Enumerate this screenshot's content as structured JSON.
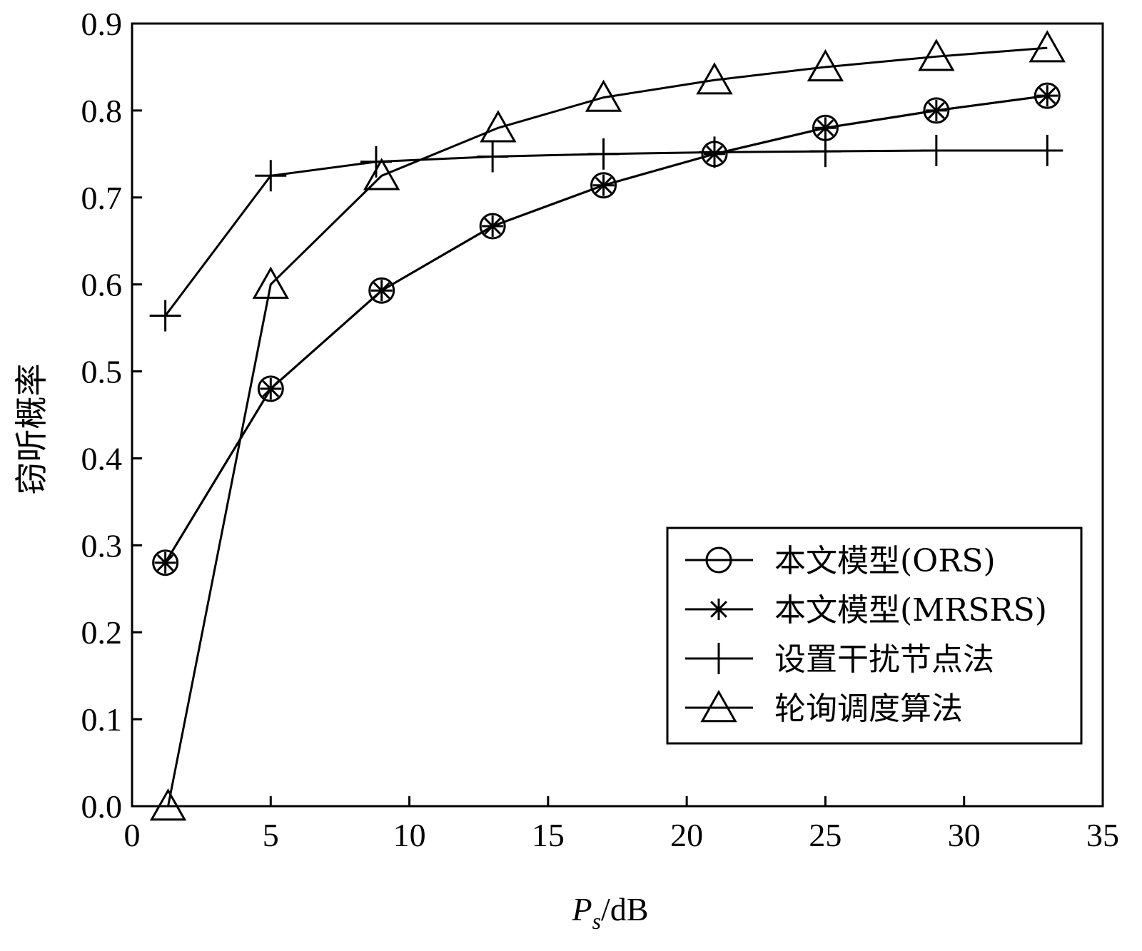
{
  "chart_data": {
    "type": "line",
    "title": "",
    "xlabel": "P_s/dB",
    "xlabel_parts": {
      "symbol": "P",
      "subscript": "s",
      "unit": "/dB"
    },
    "ylabel": "窃听概率",
    "xlim": [
      0,
      35
    ],
    "ylim": [
      0,
      0.9
    ],
    "x_ticks": [
      "0",
      "5",
      "10",
      "15",
      "20",
      "25",
      "30",
      "35"
    ],
    "y_ticks": [
      "0.0",
      "0.1",
      "0.2",
      "0.3",
      "0.4",
      "0.5",
      "0.6",
      "0.7",
      "0.8",
      "0.9"
    ],
    "grid": false,
    "legend_position": "lower-right",
    "series": [
      {
        "name": "本文模型(ORS)",
        "marker": "circle",
        "x": [
          1.2,
          5,
          9,
          13,
          17,
          21,
          25,
          29,
          33
        ],
        "y": [
          0.28,
          0.48,
          0.593,
          0.667,
          0.714,
          0.75,
          0.78,
          0.8,
          0.817
        ]
      },
      {
        "name": "本文模型(MRSRS)",
        "marker": "asterisk",
        "x": [
          1.2,
          5,
          9,
          13,
          17,
          21,
          25,
          29,
          33
        ],
        "y": [
          0.28,
          0.48,
          0.593,
          0.667,
          0.714,
          0.75,
          0.78,
          0.8,
          0.817
        ]
      },
      {
        "name": "设置干扰节点法",
        "marker": "plus",
        "x": [
          1.2,
          5,
          8.8,
          13,
          17,
          21,
          25,
          29,
          33
        ],
        "y": [
          0.564,
          0.725,
          0.741,
          0.747,
          0.75,
          0.752,
          0.753,
          0.754,
          0.754
        ]
      },
      {
        "name": "轮询调度算法",
        "marker": "triangle",
        "x": [
          1.3,
          5,
          9,
          13.2,
          17,
          21,
          25,
          29,
          33
        ],
        "y": [
          0.0,
          0.6,
          0.725,
          0.78,
          0.815,
          0.835,
          0.85,
          0.862,
          0.872
        ]
      }
    ]
  }
}
